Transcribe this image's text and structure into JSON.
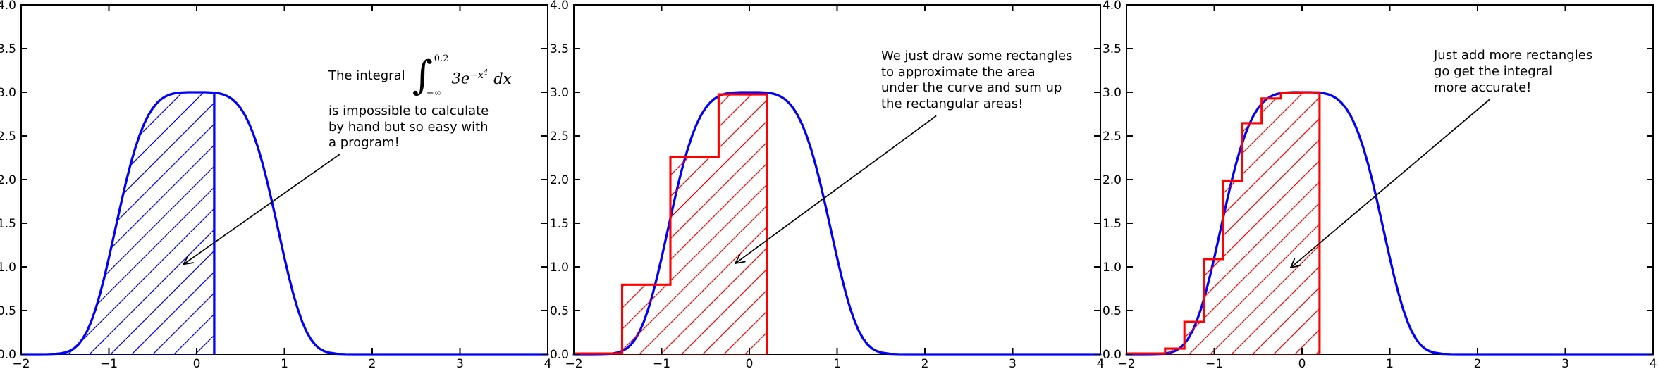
{
  "figure": {
    "background": "#ffffff"
  },
  "chart_data": {
    "type": "line",
    "title": "",
    "axes": {
      "xlim": [
        -2,
        4
      ],
      "ylim": [
        0,
        4
      ],
      "xtick_values": [
        -2,
        -1,
        0,
        1,
        2,
        3,
        4
      ],
      "xtick_labels": [
        "−2",
        "−1",
        "0",
        "1",
        "2",
        "3",
        "4"
      ],
      "ytick_values": [
        0,
        0.5,
        1,
        1.5,
        2,
        2.5,
        3,
        3.5,
        4
      ],
      "ytick_labels": [
        "0.0",
        "0.5",
        "1.0",
        "1.5",
        "2.0",
        "2.5",
        "3.0",
        "3.5",
        "4.0"
      ],
      "grid": false,
      "spine_color": "#000000"
    },
    "curve": {
      "label": "3*exp(-x^4)",
      "color": "#0000ff",
      "points": [
        [
          -2,
          0
        ],
        [
          -1.8,
          0
        ],
        [
          -1.7,
          0.001
        ],
        [
          -1.6,
          0.004
        ],
        [
          -1.55,
          0.009
        ],
        [
          -1.5,
          0.019
        ],
        [
          -1.45,
          0.036
        ],
        [
          -1.4,
          0.064
        ],
        [
          -1.35,
          0.108
        ],
        [
          -1.3,
          0.173
        ],
        [
          -1.25,
          0.261
        ],
        [
          -1.2,
          0.378
        ],
        [
          -1.15,
          0.522
        ],
        [
          -1.1,
          0.694
        ],
        [
          -1.05,
          0.89
        ],
        [
          -1,
          1.104
        ],
        [
          -0.95,
          1.328
        ],
        [
          -0.9,
          1.557
        ],
        [
          -0.85,
          1.78
        ],
        [
          -0.8,
          1.992
        ],
        [
          -0.75,
          2.186
        ],
        [
          -0.7,
          2.359
        ],
        [
          -0.65,
          2.51
        ],
        [
          -0.6,
          2.635
        ],
        [
          -0.55,
          2.738
        ],
        [
          -0.5,
          2.818
        ],
        [
          -0.45,
          2.879
        ],
        [
          -0.4,
          2.924
        ],
        [
          -0.35,
          2.955
        ],
        [
          -0.3,
          2.976
        ],
        [
          -0.25,
          2.988
        ],
        [
          -0.2,
          2.995
        ],
        [
          -0.1,
          3
        ],
        [
          0,
          3
        ],
        [
          0.1,
          3
        ],
        [
          0.2,
          2.995
        ],
        [
          0.25,
          2.988
        ],
        [
          0.3,
          2.976
        ],
        [
          0.35,
          2.955
        ],
        [
          0.4,
          2.924
        ],
        [
          0.45,
          2.879
        ],
        [
          0.5,
          2.818
        ],
        [
          0.55,
          2.738
        ],
        [
          0.6,
          2.635
        ],
        [
          0.65,
          2.51
        ],
        [
          0.7,
          2.359
        ],
        [
          0.75,
          2.186
        ],
        [
          0.8,
          1.992
        ],
        [
          0.85,
          1.78
        ],
        [
          0.9,
          1.557
        ],
        [
          0.95,
          1.328
        ],
        [
          1,
          1.104
        ],
        [
          1.05,
          0.89
        ],
        [
          1.1,
          0.694
        ],
        [
          1.15,
          0.522
        ],
        [
          1.2,
          0.378
        ],
        [
          1.25,
          0.261
        ],
        [
          1.3,
          0.173
        ],
        [
          1.35,
          0.108
        ],
        [
          1.4,
          0.064
        ],
        [
          1.45,
          0.036
        ],
        [
          1.5,
          0.019
        ],
        [
          1.6,
          0.004
        ],
        [
          1.7,
          0.001
        ],
        [
          1.8,
          0
        ],
        [
          2,
          0
        ],
        [
          2.5,
          0
        ],
        [
          3,
          0
        ],
        [
          3.5,
          0
        ],
        [
          4,
          0
        ]
      ]
    },
    "panels": [
      {
        "name": "exact-integral",
        "fill": {
          "kind": "under_curve_to_x",
          "x_end": 0.2,
          "y_at_end": 2.995,
          "color": "#0000ff",
          "hatch": "/"
        },
        "annotation": {
          "text_xy": [
            1.5,
            3.5
          ],
          "arrow": {
            "from": [
              1.63,
              2.29
            ],
            "to": [
              -0.15,
              1.03
            ],
            "color": "#000000"
          },
          "math": {
            "prefix": "The integral",
            "int_glyph": "∫",
            "upper": "0.2",
            "lower": "−∞",
            "base": "3e",
            "exp": "−x",
            "exp_power": "4",
            "tail": "dx"
          },
          "lines": [
            "is impossible to calculate",
            "by hand but so easy with",
            "a program!"
          ]
        }
      },
      {
        "name": "coarse-riemann-rectangles",
        "rects": {
          "edges": [
            -1.45,
            -0.9,
            -0.35,
            0.2
          ],
          "heights": [
            0.796,
            2.256,
            2.975
          ],
          "color": "#ff0000",
          "hatch": "/"
        },
        "annotation": {
          "text_xy": [
            1.5,
            3.5
          ],
          "arrow": {
            "from": [
              2.13,
              2.73
            ],
            "to": [
              -0.16,
              1.04
            ],
            "color": "#000000"
          },
          "lines": [
            "We just draw some rectangles",
            "to approximate the area",
            "under the curve and sum up",
            "the rectangular areas!"
          ]
        }
      },
      {
        "name": "fine-riemann-rectangles",
        "rects": {
          "edges": [
            -1.56,
            -1.34,
            -1.12,
            -0.9,
            -0.68,
            -0.46,
            -0.24,
            -0.02,
            0.2
          ],
          "heights": [
            0.064,
            0.371,
            1.089,
            1.989,
            2.646,
            2.929,
            2.995,
            2.998
          ],
          "color": "#ff0000",
          "hatch": "/"
        },
        "annotation": {
          "text_xy": [
            1.5,
            3.5
          ],
          "arrow": {
            "from": [
              2.14,
              2.92
            ],
            "to": [
              -0.13,
              0.99
            ],
            "color": "#000000"
          },
          "lines": [
            "Just add more rectangles",
            "go get the integral",
            "more accurate!"
          ]
        }
      }
    ]
  }
}
